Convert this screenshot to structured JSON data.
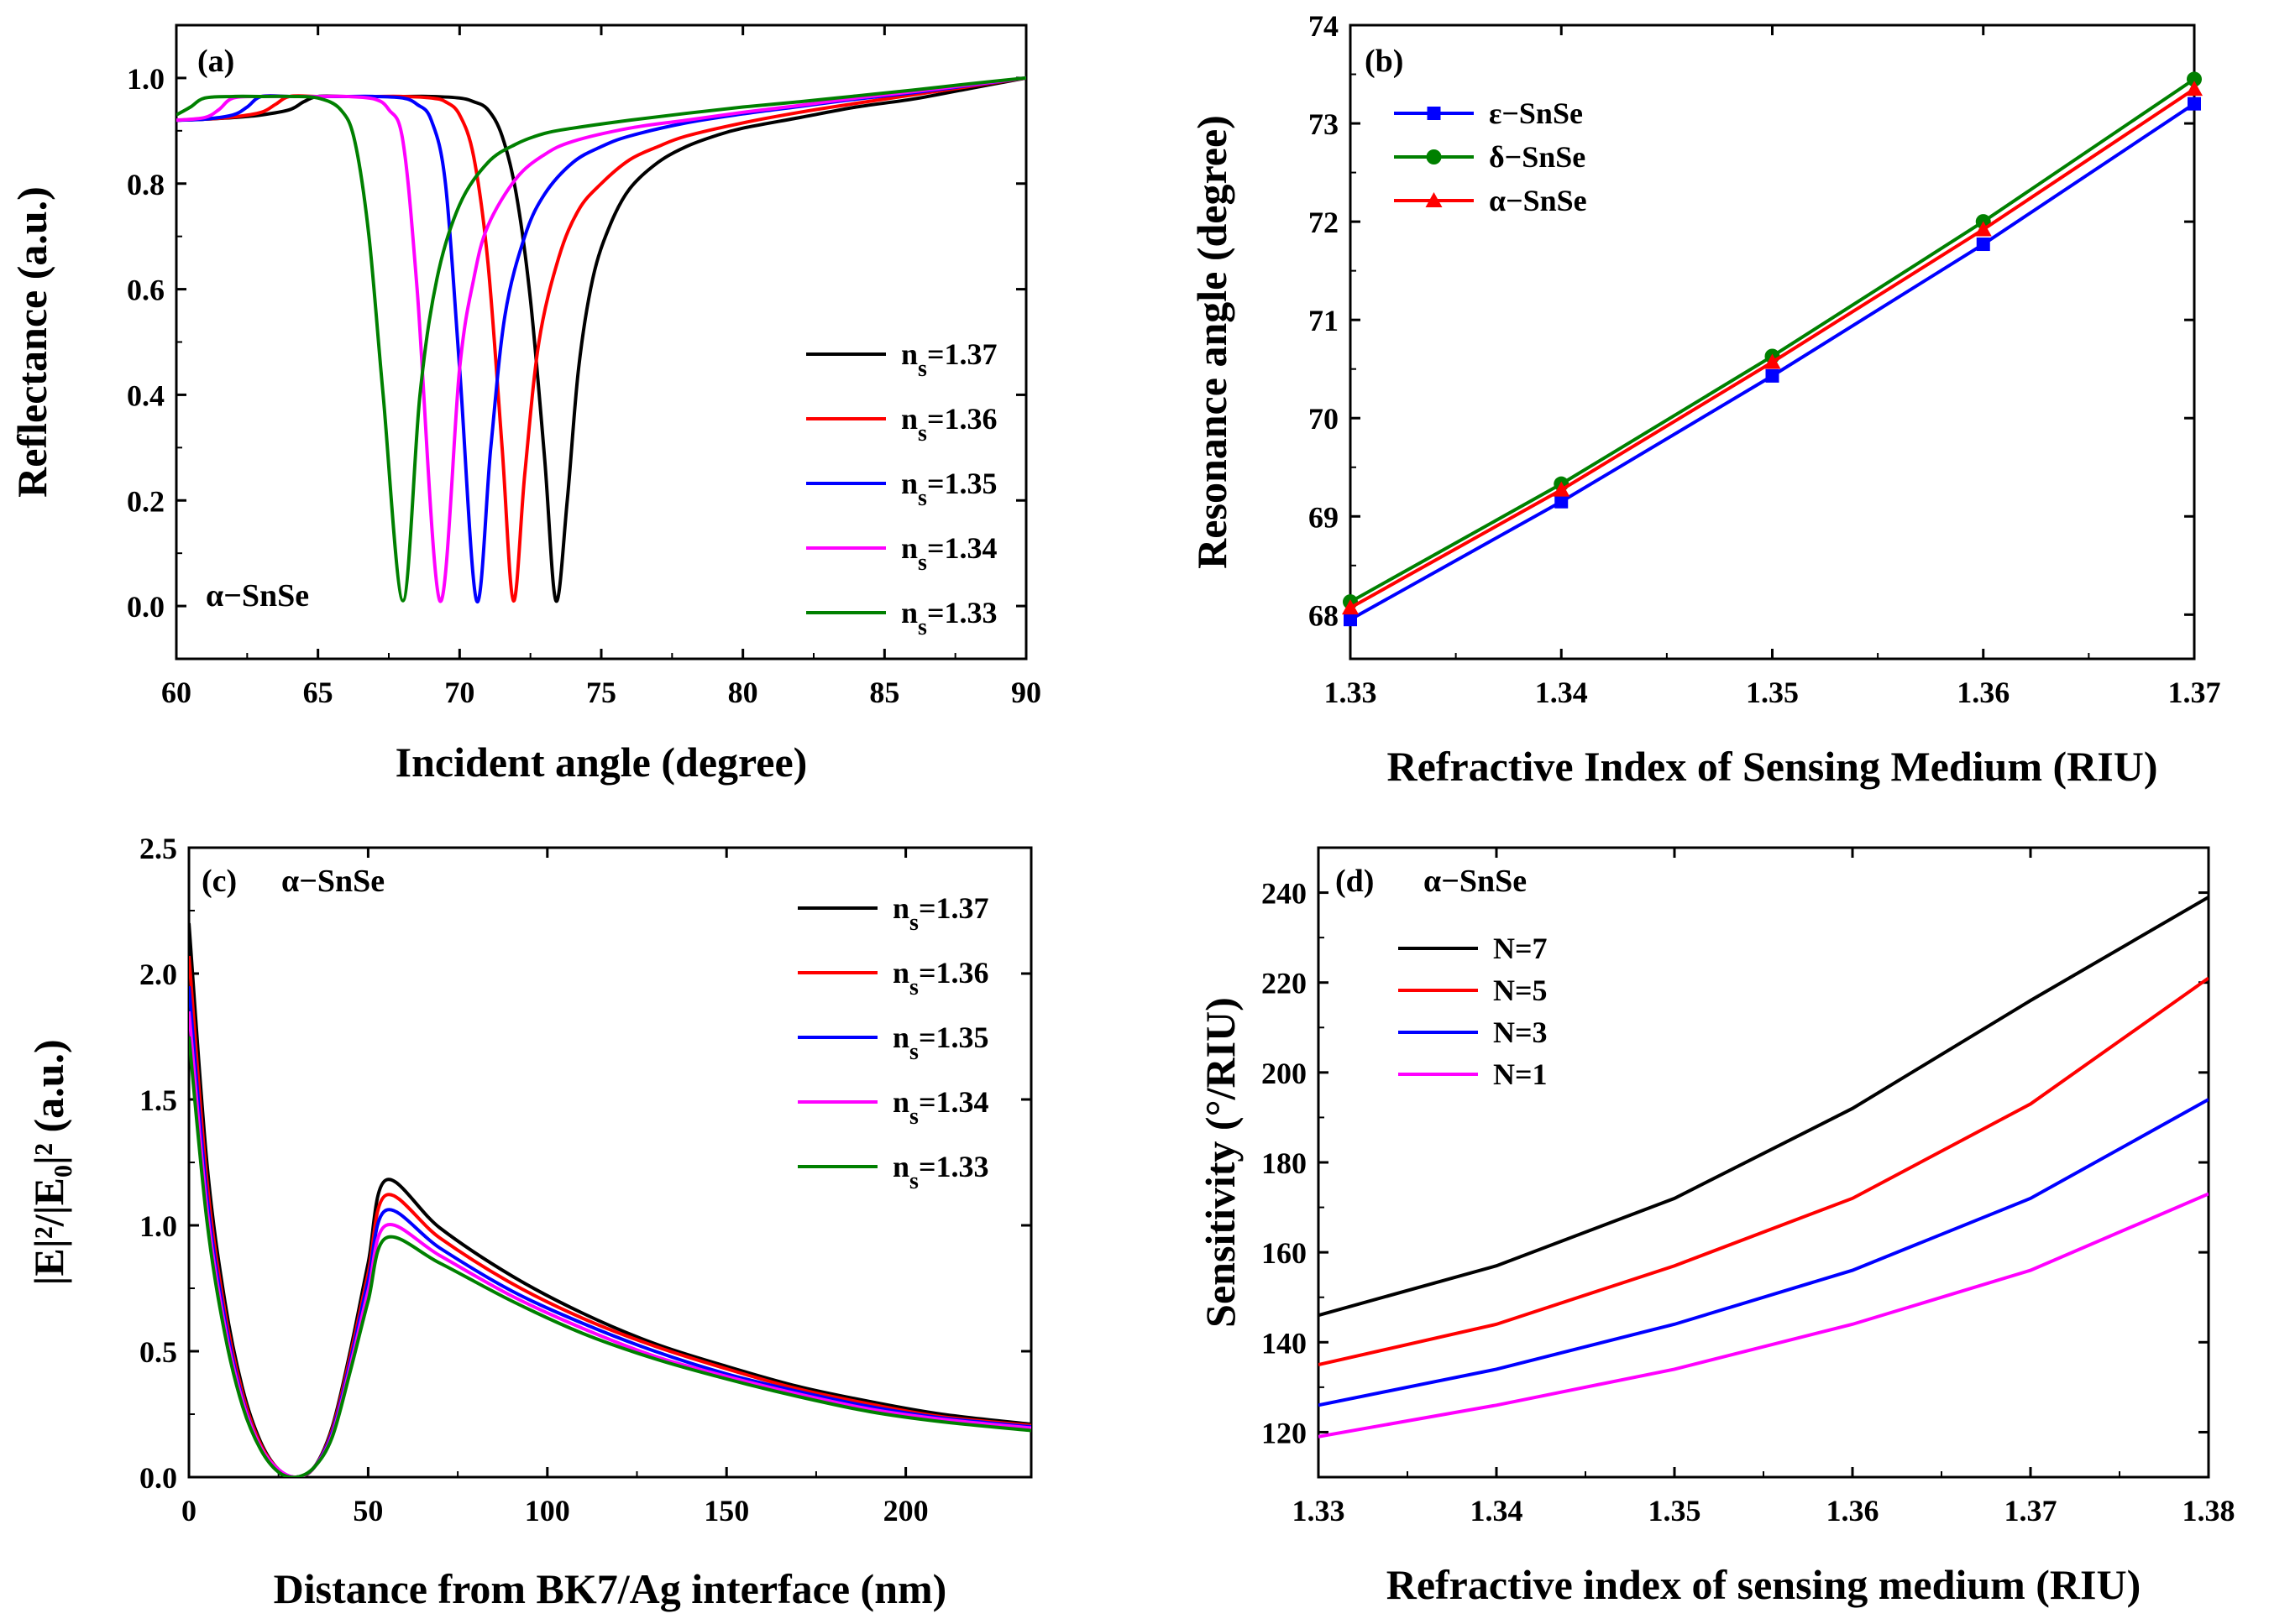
{
  "chart_data": [
    {
      "id": "a",
      "type": "line",
      "panel_label": "(a)",
      "annotation": "α−SnSe",
      "xlabel": "Incident angle (degree)",
      "ylabel": "Reflectance (a.u.)",
      "xlim": [
        60,
        90
      ],
      "ylim": [
        -0.1,
        1.1
      ],
      "xticks": [
        60,
        65,
        70,
        75,
        80,
        85,
        90
      ],
      "yticks": [
        0.0,
        0.2,
        0.4,
        0.6,
        0.8,
        1.0
      ],
      "ytick_labels": [
        "0.0",
        "0.2",
        "0.4",
        "0.6",
        "0.8",
        "1.0"
      ],
      "legend_position": "bottom-right",
      "series": [
        {
          "name": "n",
          "subscript": "s",
          "suffix": "=1.37",
          "color": "#000000",
          "x": [
            60,
            61,
            62,
            63,
            64,
            64.5,
            65,
            66,
            67,
            68,
            69,
            70,
            70.5,
            71,
            71.5,
            72,
            72.5,
            73,
            73.4,
            73.8,
            74.2,
            74.7,
            75.3,
            76,
            77,
            78,
            79,
            80,
            82,
            84,
            86,
            88,
            90
          ],
          "y": [
            0.92,
            0.922,
            0.925,
            0.93,
            0.94,
            0.955,
            0.965,
            0.965,
            0.965,
            0.965,
            0.965,
            0.962,
            0.955,
            0.94,
            0.89,
            0.78,
            0.58,
            0.28,
            0.01,
            0.2,
            0.45,
            0.62,
            0.72,
            0.79,
            0.84,
            0.87,
            0.89,
            0.905,
            0.925,
            0.945,
            0.96,
            0.98,
            1.0
          ]
        },
        {
          "name": "n",
          "subscript": "s",
          "suffix": "=1.36",
          "color": "#ff0000",
          "x": [
            60,
            61,
            62,
            63,
            63.5,
            64,
            65,
            66,
            67,
            68,
            69,
            69.5,
            70,
            70.5,
            71,
            71.5,
            71.9,
            72.3,
            72.8,
            73.5,
            74.2,
            75,
            76,
            77,
            78,
            80,
            82,
            84,
            86,
            88,
            90
          ],
          "y": [
            0.92,
            0.922,
            0.926,
            0.935,
            0.95,
            0.965,
            0.965,
            0.965,
            0.965,
            0.965,
            0.962,
            0.955,
            0.93,
            0.85,
            0.65,
            0.3,
            0.01,
            0.25,
            0.5,
            0.66,
            0.75,
            0.8,
            0.845,
            0.87,
            0.89,
            0.915,
            0.935,
            0.952,
            0.968,
            0.984,
            1.0
          ]
        },
        {
          "name": "n",
          "subscript": "s",
          "suffix": "=1.35",
          "color": "#0000ff",
          "x": [
            60,
            61,
            62,
            62.5,
            63,
            64,
            65,
            66,
            67,
            68,
            68.5,
            69,
            69.5,
            70,
            70.6,
            71.1,
            71.6,
            72.3,
            73,
            74,
            75,
            76,
            78,
            80,
            82,
            84,
            86,
            88,
            90
          ],
          "y": [
            0.92,
            0.922,
            0.93,
            0.945,
            0.965,
            0.965,
            0.965,
            0.965,
            0.965,
            0.962,
            0.95,
            0.92,
            0.8,
            0.45,
            0.01,
            0.3,
            0.55,
            0.7,
            0.78,
            0.84,
            0.87,
            0.89,
            0.915,
            0.932,
            0.946,
            0.96,
            0.972,
            0.986,
            1.0
          ]
        },
        {
          "name": "n",
          "subscript": "s",
          "suffix": "=1.34",
          "color": "#ff00ff",
          "x": [
            60,
            61,
            61.5,
            62,
            63,
            64,
            65,
            66,
            67,
            67.5,
            68,
            68.5,
            69.3,
            70,
            70.5,
            71,
            72,
            73,
            74,
            76,
            78,
            80,
            82,
            84,
            86,
            88,
            90
          ],
          "y": [
            0.92,
            0.925,
            0.94,
            0.962,
            0.965,
            0.965,
            0.965,
            0.965,
            0.96,
            0.94,
            0.88,
            0.6,
            0.01,
            0.45,
            0.62,
            0.72,
            0.81,
            0.855,
            0.88,
            0.905,
            0.92,
            0.935,
            0.948,
            0.962,
            0.974,
            0.987,
            1.0
          ]
        },
        {
          "name": "n",
          "subscript": "s",
          "suffix": "=1.33",
          "color": "#008000",
          "x": [
            60,
            60.5,
            61,
            62,
            63,
            64,
            65,
            65.8,
            66.3,
            66.8,
            67.3,
            68,
            68.6,
            69.2,
            70,
            71,
            72,
            73,
            74,
            76,
            78,
            80,
            82,
            84,
            86,
            88,
            90
          ],
          "y": [
            0.93,
            0.945,
            0.962,
            0.965,
            0.965,
            0.965,
            0.962,
            0.94,
            0.88,
            0.7,
            0.4,
            0.01,
            0.4,
            0.62,
            0.76,
            0.84,
            0.875,
            0.895,
            0.905,
            0.92,
            0.933,
            0.945,
            0.955,
            0.966,
            0.977,
            0.989,
            1.0
          ]
        }
      ]
    },
    {
      "id": "b",
      "type": "line",
      "panel_label": "(b)",
      "xlabel": "Refractive Index of Sensing Medium (RIU)",
      "ylabel": "Resonance angle (degree)",
      "xlim": [
        1.33,
        1.37
      ],
      "ylim": [
        67.55,
        74.0
      ],
      "xticks": [
        1.33,
        1.34,
        1.35,
        1.36,
        1.37
      ],
      "xtick_labels": [
        "1.33",
        "1.34",
        "1.35",
        "1.36",
        "1.37"
      ],
      "yticks": [
        68,
        69,
        70,
        71,
        72,
        73,
        74
      ],
      "legend_position": "top-left",
      "series": [
        {
          "name": "ε−SnSe",
          "color": "#0000ff",
          "marker": "square",
          "x": [
            1.33,
            1.34,
            1.35,
            1.36,
            1.37
          ],
          "y": [
            67.95,
            69.15,
            70.43,
            71.77,
            73.2
          ]
        },
        {
          "name": "δ−SnSe",
          "color": "#008000",
          "marker": "circle",
          "x": [
            1.33,
            1.34,
            1.35,
            1.36,
            1.37
          ],
          "y": [
            68.13,
            69.33,
            70.63,
            72.0,
            73.45
          ]
        },
        {
          "name": "α−SnSe",
          "color": "#ff0000",
          "marker": "triangle",
          "x": [
            1.33,
            1.34,
            1.35,
            1.36,
            1.37
          ],
          "y": [
            68.07,
            69.27,
            70.57,
            71.92,
            73.35
          ]
        }
      ]
    },
    {
      "id": "c",
      "type": "line",
      "panel_label": "(c)",
      "annotation": "α−SnSe",
      "xlabel": "Distance from BK7/Ag interface (nm)",
      "ylabel": "|E|²/|E₀|² (a.u.)",
      "xlim": [
        0,
        235
      ],
      "ylim": [
        0,
        2.5
      ],
      "xticks": [
        0,
        50,
        100,
        150,
        200
      ],
      "yticks": [
        0.0,
        0.5,
        1.0,
        1.5,
        2.0,
        2.5
      ],
      "ytick_labels": [
        "0.0",
        "0.5",
        "1.0",
        "1.5",
        "2.0",
        "2.5"
      ],
      "legend_position": "top-right",
      "series": [
        {
          "name": "n",
          "subscript": "s",
          "suffix": "=1.37",
          "color": "#000000",
          "x": [
            0,
            5,
            10,
            15,
            20,
            25,
            30,
            35,
            40,
            45,
            50,
            55,
            70,
            90,
            110,
            130,
            150,
            170,
            190,
            210,
            235
          ],
          "y": [
            2.2,
            1.25,
            0.7,
            0.35,
            0.14,
            0.03,
            0.0,
            0.04,
            0.2,
            0.5,
            0.85,
            1.18,
            0.99,
            0.8,
            0.65,
            0.53,
            0.44,
            0.36,
            0.3,
            0.25,
            0.21
          ]
        },
        {
          "name": "n",
          "subscript": "s",
          "suffix": "=1.36",
          "color": "#ff0000",
          "x": [
            0,
            5,
            10,
            15,
            20,
            25,
            30,
            35,
            40,
            45,
            50,
            55,
            70,
            90,
            110,
            130,
            150,
            170,
            190,
            210,
            235
          ],
          "y": [
            2.07,
            1.18,
            0.66,
            0.33,
            0.13,
            0.03,
            0.0,
            0.04,
            0.19,
            0.48,
            0.81,
            1.12,
            0.95,
            0.77,
            0.63,
            0.52,
            0.43,
            0.35,
            0.29,
            0.24,
            0.205
          ]
        },
        {
          "name": "n",
          "subscript": "s",
          "suffix": "=1.35",
          "color": "#0000ff",
          "x": [
            0,
            5,
            10,
            15,
            20,
            25,
            30,
            35,
            40,
            45,
            50,
            55,
            70,
            90,
            110,
            130,
            150,
            170,
            190,
            210,
            235
          ],
          "y": [
            1.95,
            1.12,
            0.63,
            0.31,
            0.12,
            0.03,
            0.0,
            0.04,
            0.18,
            0.46,
            0.78,
            1.06,
            0.91,
            0.74,
            0.61,
            0.5,
            0.41,
            0.34,
            0.28,
            0.235,
            0.2
          ]
        },
        {
          "name": "n",
          "subscript": "s",
          "suffix": "=1.34",
          "color": "#ff00ff",
          "x": [
            0,
            5,
            10,
            15,
            20,
            25,
            30,
            35,
            40,
            45,
            50,
            55,
            70,
            90,
            110,
            130,
            150,
            170,
            190,
            210,
            235
          ],
          "y": [
            1.85,
            1.07,
            0.6,
            0.3,
            0.12,
            0.03,
            0.0,
            0.04,
            0.17,
            0.44,
            0.74,
            1.0,
            0.88,
            0.72,
            0.59,
            0.48,
            0.4,
            0.33,
            0.27,
            0.23,
            0.195
          ]
        },
        {
          "name": "n",
          "subscript": "s",
          "suffix": "=1.33",
          "color": "#008000",
          "x": [
            0,
            5,
            10,
            15,
            20,
            25,
            30,
            35,
            40,
            45,
            50,
            55,
            70,
            90,
            110,
            130,
            150,
            170,
            190,
            210,
            235
          ],
          "y": [
            1.75,
            1.02,
            0.57,
            0.28,
            0.11,
            0.02,
            0.0,
            0.04,
            0.16,
            0.42,
            0.7,
            0.95,
            0.85,
            0.7,
            0.57,
            0.47,
            0.39,
            0.32,
            0.26,
            0.22,
            0.185
          ]
        }
      ]
    },
    {
      "id": "d",
      "type": "line",
      "panel_label": "(d)",
      "annotation": "α−SnSe",
      "xlabel": "Refractive index of sensing medium (RIU)",
      "ylabel": "Sensitivity (°/RIU)",
      "xlim": [
        1.33,
        1.38
      ],
      "ylim": [
        110,
        250
      ],
      "xticks": [
        1.33,
        1.34,
        1.35,
        1.36,
        1.37,
        1.38
      ],
      "xtick_labels": [
        "1.33",
        "1.34",
        "1.35",
        "1.36",
        "1.37",
        "1.38"
      ],
      "yticks": [
        120,
        140,
        160,
        180,
        200,
        220,
        240
      ],
      "legend_position": "top-left",
      "series": [
        {
          "name": "N=7",
          "color": "#000000",
          "x": [
            1.33,
            1.34,
            1.35,
            1.36,
            1.37,
            1.38
          ],
          "y": [
            146,
            157,
            172,
            192,
            216,
            239
          ]
        },
        {
          "name": "N=5",
          "color": "#ff0000",
          "x": [
            1.33,
            1.34,
            1.35,
            1.36,
            1.37,
            1.38
          ],
          "y": [
            135,
            144,
            157,
            172,
            193,
            221
          ]
        },
        {
          "name": "N=3",
          "color": "#0000ff",
          "x": [
            1.33,
            1.34,
            1.35,
            1.36,
            1.37,
            1.38
          ],
          "y": [
            126,
            134,
            144,
            156,
            172,
            194
          ]
        },
        {
          "name": "N=1",
          "color": "#ff00ff",
          "x": [
            1.33,
            1.34,
            1.35,
            1.36,
            1.37,
            1.38
          ],
          "y": [
            119,
            126,
            134,
            144,
            156,
            173
          ]
        }
      ]
    }
  ]
}
